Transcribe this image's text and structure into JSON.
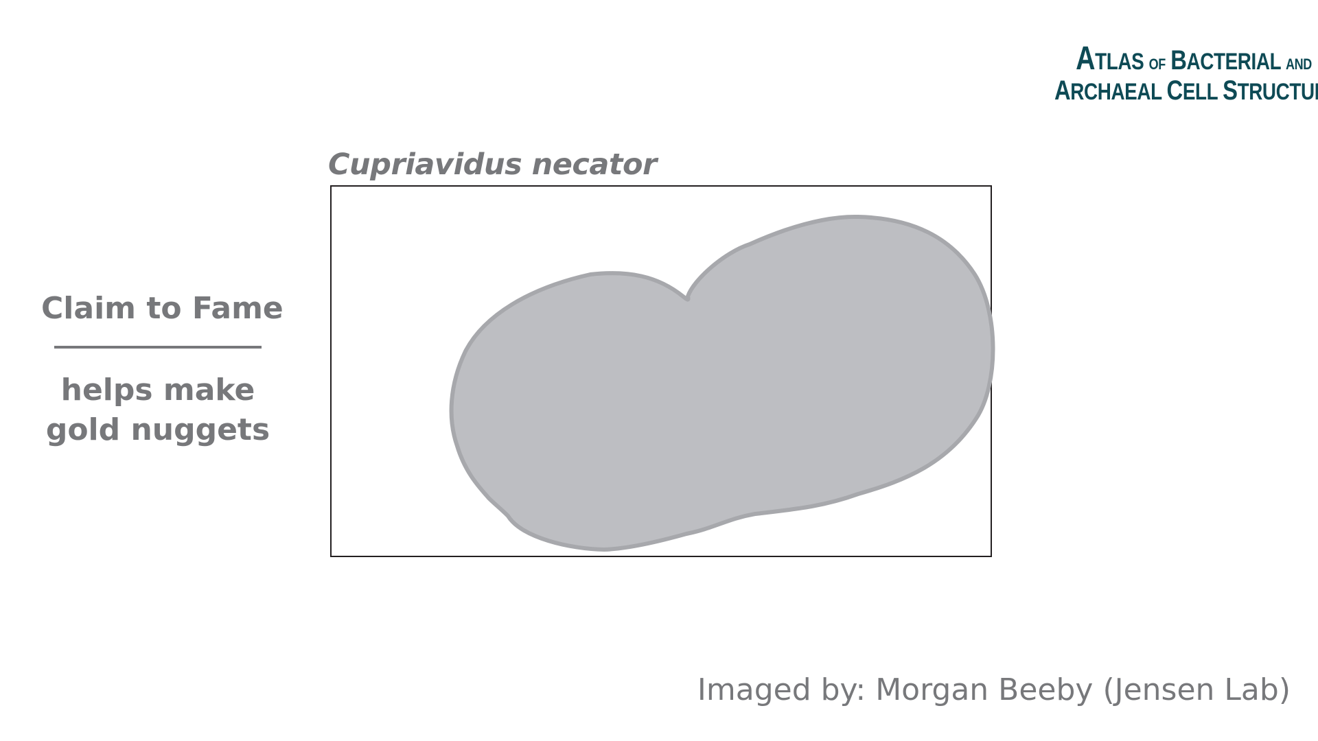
{
  "logo": {
    "line1_cap": "A",
    "line1_rest": "TLAS",
    "line1_of": "OF",
    "line1_cap2": "B",
    "line1_rest2": "ACTERIAL",
    "line1_and": "AND",
    "line2_cap": "A",
    "line2_rest": "RCHAEAL",
    "line2_cap2": "C",
    "line2_rest2": "ELL",
    "line2_cap3": "S",
    "line2_rest3": "TRUCTURE"
  },
  "specimen": {
    "name": "Cupriavidus necator"
  },
  "claim": {
    "heading": "Claim to Fame",
    "line1": "helps make",
    "line2": "gold nuggets"
  },
  "credit": {
    "text": "Imaged by: Morgan Beeby (Jensen Lab)"
  },
  "colors": {
    "logo": "#0e4a55",
    "text_gray": "#77787b",
    "cell_fill": "#bdbec2",
    "cell_outline": "#a7a8ac",
    "frame": "#231f20"
  }
}
